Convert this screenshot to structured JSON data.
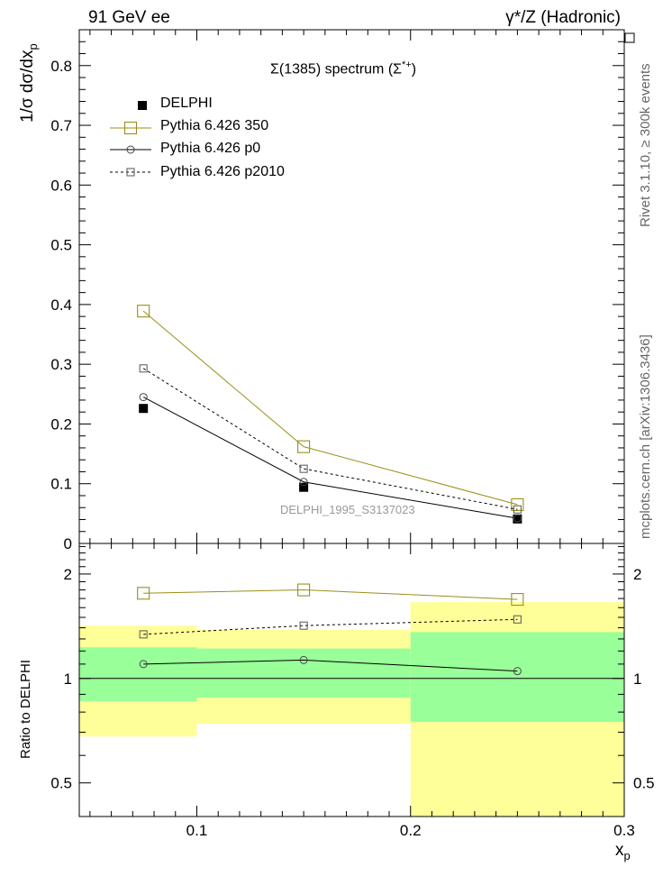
{
  "header": {
    "left_title": "91 GeV ee",
    "right_title": "γ*/Z (Hadronic)"
  },
  "side_labels": {
    "rivet": "Rivet 3.1.10, ≥ 300k events",
    "mcplots": "mcplots.cern.ch [arXiv:1306.3436]"
  },
  "watermark": "DELPHI_1995_S3137023",
  "colors": {
    "data": "#000000",
    "p350": "#9a8f1a",
    "p0": "#000000",
    "p2010": "#000000",
    "band_inner": "#99ff99",
    "band_outer": "#ffff99"
  },
  "chart_data": [
    {
      "type": "line",
      "title": "Σ(1385) spectrum (Σ*+)",
      "title_main": "Σ(1385) spectrum (Σ",
      "title_sup": "*+",
      "title_end": ")",
      "ylabel": "1/σ dσ/dx_p",
      "ylabel_main": "1/σ dσ/dx",
      "ylabel_sub": "p",
      "xlim": [
        0.045,
        0.3
      ],
      "ylim": [
        0,
        0.86
      ],
      "yticks": [
        0,
        0.1,
        0.2,
        0.3,
        0.4,
        0.5,
        0.6,
        0.7,
        0.8
      ],
      "ytick_labels": [
        "0",
        "0.1",
        "0.2",
        "0.3",
        "0.4",
        "0.5",
        "0.6",
        "0.7",
        "0.8"
      ],
      "legend_position": "top-left",
      "x": [
        0.075,
        0.15,
        0.25
      ],
      "series": [
        {
          "name": "DELPHI",
          "marker": "filled-square",
          "line": "none",
          "values": [
            0.226,
            0.094,
            0.041
          ]
        },
        {
          "name": "Pythia 6.426 350",
          "marker": "open-square-large",
          "line": "solid",
          "values": [
            0.389,
            0.162,
            0.065
          ]
        },
        {
          "name": "Pythia 6.426 p0",
          "marker": "open-circle",
          "line": "solid",
          "values": [
            0.245,
            0.103,
            0.042
          ]
        },
        {
          "name": "Pythia 6.426 p2010",
          "marker": "open-square-small",
          "line": "dashed",
          "values": [
            0.293,
            0.125,
            0.057
          ]
        }
      ]
    },
    {
      "type": "line",
      "ylabel": "Ratio to DELPHI",
      "xlabel": "x_p",
      "xlabel_main": "x",
      "xlabel_sub": "p",
      "xlim": [
        0.045,
        0.3
      ],
      "ylim": [
        0.4,
        2.45
      ],
      "ylog": true,
      "xticks": [
        0.1,
        0.2,
        0.3
      ],
      "xtick_labels": [
        "0.1",
        "0.2",
        "0.3"
      ],
      "yticks": [
        0.5,
        1,
        2
      ],
      "ytick_labels": [
        "0.5",
        "1",
        "2"
      ],
      "x": [
        0.075,
        0.15,
        0.25
      ],
      "bins": [
        [
          0.045,
          0.1
        ],
        [
          0.1,
          0.2
        ],
        [
          0.2,
          0.3
        ]
      ],
      "band_inner": [
        [
          0.86,
          1.23
        ],
        [
          0.88,
          1.22
        ],
        [
          0.75,
          1.36
        ]
      ],
      "band_outer": [
        [
          0.68,
          1.42
        ],
        [
          0.74,
          1.38
        ],
        [
          0.4,
          1.66
        ]
      ],
      "series": [
        {
          "name": "Pythia 6.426 350",
          "values": [
            1.76,
            1.8,
            1.69
          ]
        },
        {
          "name": "Pythia 6.426 p0",
          "values": [
            1.1,
            1.13,
            1.05
          ]
        },
        {
          "name": "Pythia 6.426 p2010",
          "values": [
            1.34,
            1.42,
            1.48
          ]
        }
      ]
    }
  ]
}
